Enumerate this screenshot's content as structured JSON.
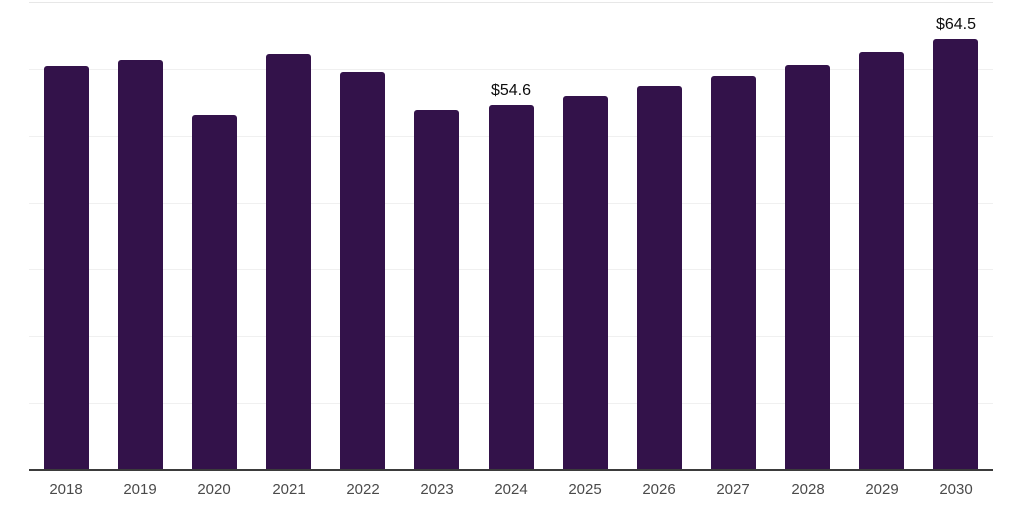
{
  "chart_data": {
    "type": "bar",
    "title": "",
    "xlabel": "",
    "ylabel": "",
    "categories": [
      "2018",
      "2019",
      "2020",
      "2021",
      "2022",
      "2023",
      "2024",
      "2025",
      "2026",
      "2027",
      "2028",
      "2029",
      "2030"
    ],
    "values": [
      60.4,
      61.3,
      53.1,
      62.2,
      59.5,
      53.8,
      54.6,
      55.9,
      57.4,
      58.9,
      60.6,
      62.5,
      64.5
    ],
    "data_labels": {
      "2024": "$54.6",
      "2030": "$64.5"
    },
    "ylim": [
      0,
      70
    ],
    "gridline_step": 10,
    "grid": true,
    "legend": false,
    "y_tick_labels_visible": false,
    "colors": {
      "bar": "#33124a",
      "gridline": "#f0f0f0",
      "top_gridline": "#e7e7e7",
      "axis_line": "#3b3b3b",
      "tick_label": "#4a4a4a",
      "value_label": "#0d0d0d",
      "background": "#ffffff"
    }
  }
}
